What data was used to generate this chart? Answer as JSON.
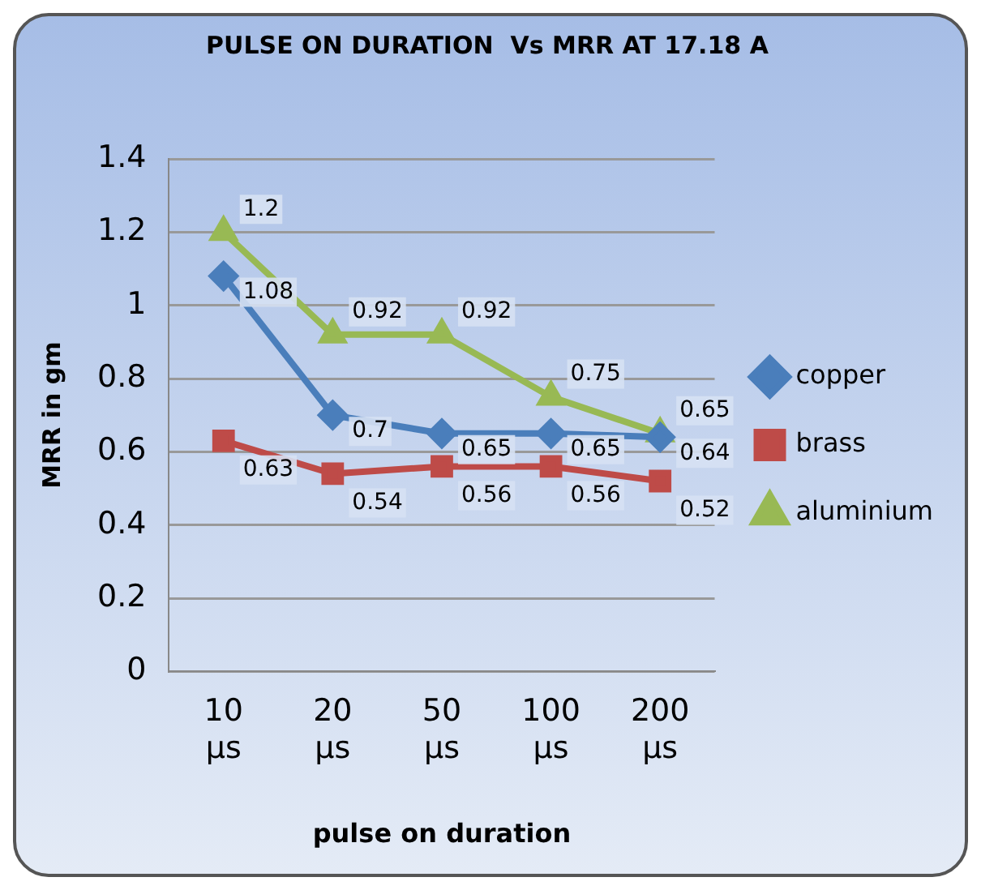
{
  "chart_data": {
    "type": "line",
    "title": "PULSE ON DURATION  Vs MRR AT 17.18 A",
    "xlabel": "pulse on duration",
    "ylabel": "MRR in gm",
    "categories": [
      "10 µs",
      "20 µs",
      "50 µs",
      "100 µs",
      "200 µs"
    ],
    "series": [
      {
        "name": "copper",
        "color": "#4a7ebb",
        "marker": "diamond",
        "values": [
          1.08,
          0.7,
          0.65,
          0.65,
          0.64
        ]
      },
      {
        "name": "brass",
        "color": "#be4b48",
        "marker": "square",
        "values": [
          0.63,
          0.54,
          0.56,
          0.56,
          0.52
        ]
      },
      {
        "name": "aluminium",
        "color": "#98b954",
        "marker": "triangle",
        "values": [
          1.2,
          0.92,
          0.92,
          0.75,
          0.65
        ]
      }
    ],
    "ylim": [
      0,
      1.4
    ],
    "yticks": [
      0,
      0.2,
      0.4,
      0.6,
      0.8,
      1,
      1.2,
      1.4
    ],
    "grid": "y",
    "legend": "right",
    "data_labels": true
  }
}
